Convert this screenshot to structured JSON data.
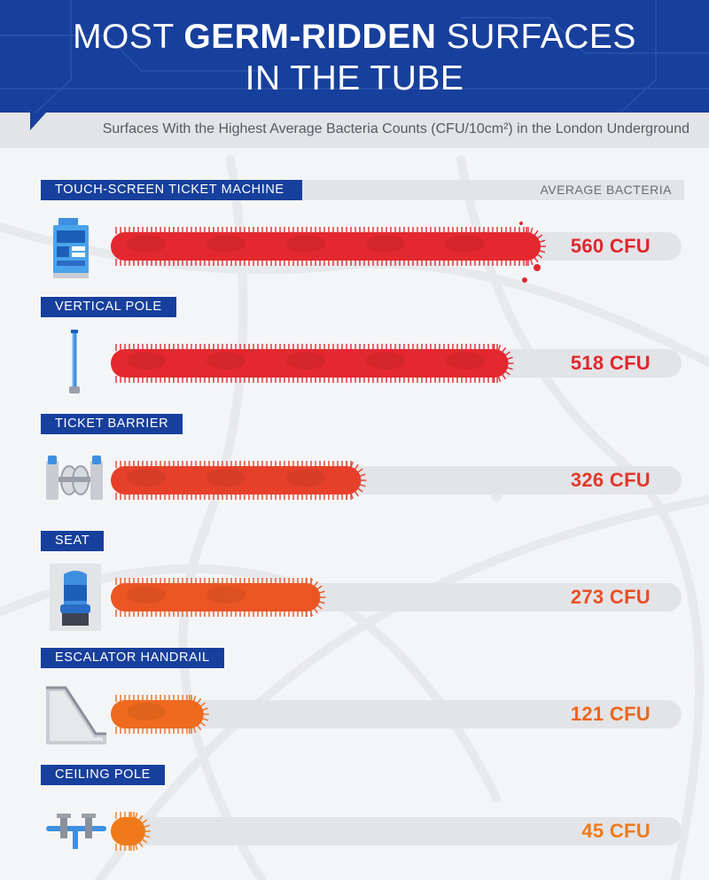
{
  "header": {
    "title_line1_pre": "MOST ",
    "title_line1_bold": "GERM-RIDDEN",
    "title_line1_post": " SURFACES",
    "title_line2": "IN THE TUBE",
    "subtitle": "Surfaces With the Highest Average Bacteria Counts (CFU/10cm²) in the London Underground"
  },
  "colors": {
    "header_blue": "#173f9c",
    "track_gray": "#e3e4e7"
  },
  "chart_data": {
    "type": "bar",
    "title": "MOST GERM-RIDDEN SURFACES IN THE TUBE",
    "subtitle": "Surfaces With the Highest Average Bacteria Counts (CFU/10cm²) in the London Underground",
    "value_header": "AVERAGE BACTERIA",
    "unit": "CFU",
    "orientation": "horizontal",
    "xlim": [
      0,
      600
    ],
    "categories": [
      "TOUCH-SCREEN TICKET MACHINE",
      "VERTICAL POLE",
      "TICKET BARRIER",
      "SEAT",
      "ESCALATOR HANDRAIL",
      "CEILING POLE"
    ],
    "values": [
      560,
      518,
      326,
      273,
      121,
      45
    ],
    "value_labels": [
      "560 CFU",
      "518 CFU",
      "326 CFU",
      "273 CFU",
      "121 CFU",
      "45 CFU"
    ],
    "icons": [
      "ticket-machine-icon",
      "vertical-pole-icon",
      "ticket-barrier-icon",
      "seat-icon",
      "escalator-icon",
      "ceiling-pole-icon"
    ],
    "bar_colors": [
      "#e3282e",
      "#e3282e",
      "#e6402a",
      "#eb5524",
      "#ef6a1e",
      "#f07a1a"
    ],
    "label_colors": [
      "#e0262c",
      "#e0262c",
      "#e2392a",
      "#e85023",
      "#ec661d",
      "#ee7a1a"
    ]
  }
}
